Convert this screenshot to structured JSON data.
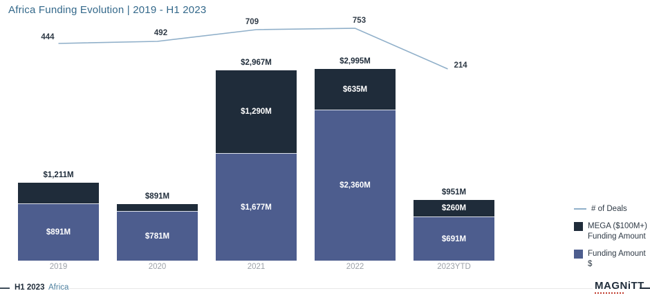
{
  "header": {
    "title": "Africa Funding Evolution | 2019 - H1 2023"
  },
  "chart_data": {
    "type": "stacked-bar+line",
    "title": "Africa Funding Evolution | 2019 - H1 2023",
    "categories": [
      "2019",
      "2020",
      "2021",
      "2022",
      "2023YTD"
    ],
    "series": [
      {
        "name": "Funding Amount $",
        "type": "bar",
        "stack": "funding",
        "color": "#4d5d8e",
        "values": [
          891,
          781,
          1677,
          2360,
          691
        ],
        "labels": [
          "$891M",
          "$781M",
          "$1,677M",
          "$2,360M",
          "$691M"
        ]
      },
      {
        "name": "MEGA ($100M+) Funding Amount",
        "type": "bar",
        "stack": "funding",
        "color": "#1f2c3a",
        "values": [
          320,
          110,
          1290,
          635,
          260
        ],
        "labels": [
          null,
          null,
          "$1,290M",
          "$635M",
          "$260M"
        ]
      },
      {
        "name": "# of Deals",
        "type": "line",
        "color": "#8fafc9",
        "values": [
          444,
          492,
          709,
          753,
          214
        ],
        "labels": [
          "444",
          "492",
          "709",
          "753",
          "214"
        ]
      }
    ],
    "totals": {
      "values": [
        1211,
        891,
        2967,
        2995,
        951
      ],
      "labels": [
        "$1,211M",
        "$891M",
        "$2,967M",
        "$2,995M",
        "$951M"
      ]
    },
    "unit": "$M",
    "grid": false,
    "legend_position": "right"
  },
  "legend": {
    "deals_label": "# of Deals",
    "mega_label_line1": "MEGA ($100M+)",
    "mega_label_line2": "Funding Amount",
    "funding_label": "Funding Amount $"
  },
  "footer": {
    "period": "H1 2023",
    "region": "Africa",
    "brand": "MAGNiTT"
  },
  "colors": {
    "mega": "#1f2c3a",
    "funding": "#4d5d8e",
    "deals_line": "#8fafc9",
    "title": "#33688a",
    "axis_label": "#9ca1a8",
    "accent_red": "#c0392b"
  }
}
